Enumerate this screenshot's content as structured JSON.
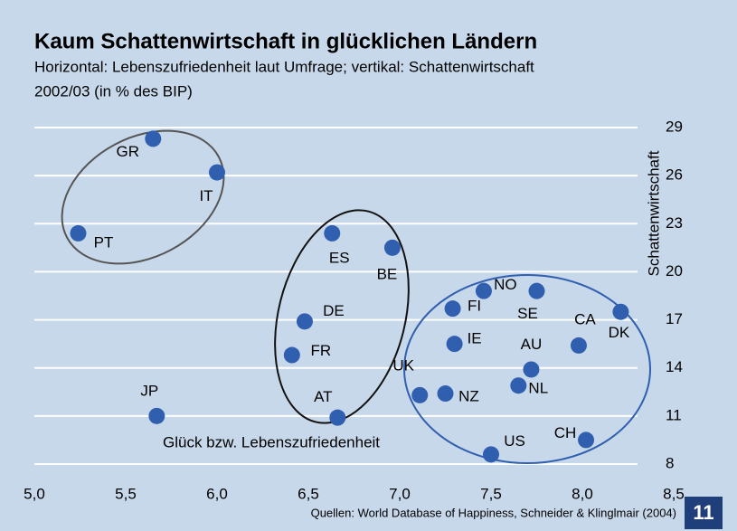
{
  "chart_data": {
    "type": "scatter",
    "title": "Kaum Schattenwirtschaft in glücklichen Ländern",
    "subtitle": [
      "Horizontal: Lebenszufriedenheit laut Umfrage; vertikal: Schattenwirtschaft",
      "2002/03 (in % des BIP)"
    ],
    "x_label": "Glück bzw. Lebenszufriedenheit",
    "y_label": "Schattenwirtschaft",
    "source": "Quellen: World Database of Happiness, Schneider & Klinglmair (2004)",
    "page_number": "11",
    "point_labels": [
      "GR",
      "IT",
      "PT",
      "ES",
      "BE",
      "DE",
      "FR",
      "AT",
      "JP",
      "FI",
      "NO",
      "SE",
      "IE",
      "CA",
      "DK",
      "AU",
      "NL",
      "UK",
      "NZ",
      "US",
      "CH"
    ],
    "x": [
      5.65,
      6.0,
      5.24,
      6.63,
      6.96,
      6.48,
      6.41,
      6.66,
      5.67,
      7.29,
      7.46,
      7.75,
      7.3,
      7.98,
      8.21,
      7.72,
      7.65,
      7.11,
      7.25,
      7.5,
      8.02
    ],
    "values": [
      28.3,
      26.2,
      22.4,
      22.4,
      21.5,
      16.9,
      14.8,
      10.9,
      11.0,
      17.7,
      18.8,
      18.8,
      15.5,
      15.4,
      17.5,
      13.9,
      12.9,
      12.3,
      12.4,
      8.6,
      9.5
    ],
    "color": "#2f5fae",
    "xlim": [
      5.0,
      8.5
    ],
    "xticks": [
      {
        "value": 5.0,
        "label": "5,0"
      },
      {
        "value": 5.5,
        "label": "5,5"
      },
      {
        "value": 6.0,
        "label": "6,0"
      },
      {
        "value": 6.5,
        "label": "6,5"
      },
      {
        "value": 7.0,
        "label": "7,0"
      },
      {
        "value": 7.5,
        "label": "7,5"
      },
      {
        "value": 8.0,
        "label": "8,0"
      },
      {
        "value": 8.5,
        "label": "8,5"
      }
    ],
    "ylim": [
      8,
      29
    ],
    "yticks": [
      8,
      11,
      14,
      17,
      20,
      23,
      26,
      29
    ],
    "grid": true
  }
}
